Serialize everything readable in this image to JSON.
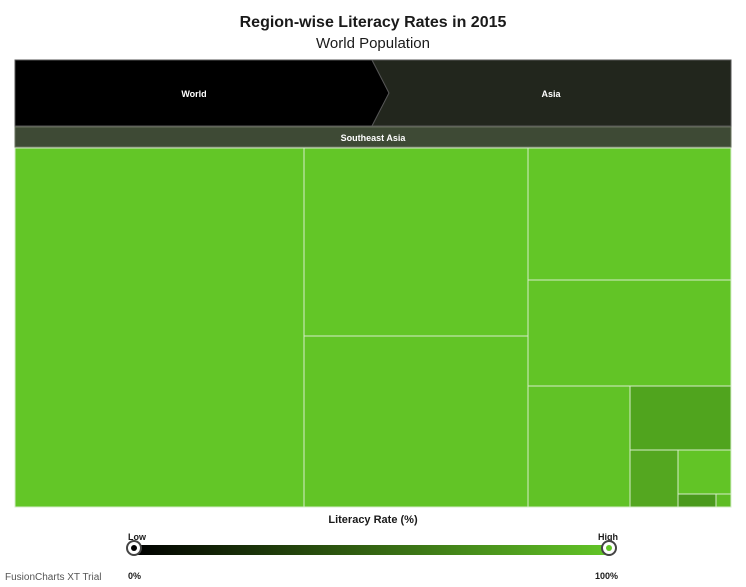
{
  "chart_data": {
    "type": "treemap",
    "title": "Region-wise Literacy Rates in 2015",
    "subtitle": "World Population",
    "breadcrumb": [
      "World",
      "Asia"
    ],
    "current_node": "Southeast Asia",
    "color_range": {
      "min": 0,
      "max": 100,
      "min_color": "#000000",
      "max_color": "#63c627"
    },
    "cells": [
      {
        "area": 124500,
        "literacy": 97,
        "color": "#63c627"
      },
      {
        "area": 42700,
        "literacy": 96,
        "color": "#63c627"
      },
      {
        "area": 38100,
        "literacy": 95,
        "color": "#62c426"
      },
      {
        "area": 27000,
        "literacy": 95,
        "color": "#63c627"
      },
      {
        "area": 21700,
        "literacy": 94,
        "color": "#62c426"
      },
      {
        "area": 12800,
        "literacy": 94,
        "color": "#61c226"
      },
      {
        "area": 7200,
        "literacy": 80,
        "color": "#50a41e"
      },
      {
        "area": 3400,
        "literacy": 75,
        "color": "#54a720"
      },
      {
        "area": 2000,
        "literacy": 95,
        "color": "#62c426"
      },
      {
        "area": 460,
        "literacy": 65,
        "color": "#4a9a1c"
      },
      {
        "area": 170,
        "literacy": 92,
        "color": "#5ebc24"
      }
    ]
  },
  "legend": {
    "title": "Literacy Rate (%)",
    "low_label": "Low",
    "high_label": "High",
    "min_label": "0%",
    "max_label": "100%"
  },
  "footer": {
    "credit": "FusionCharts XT Trial"
  }
}
